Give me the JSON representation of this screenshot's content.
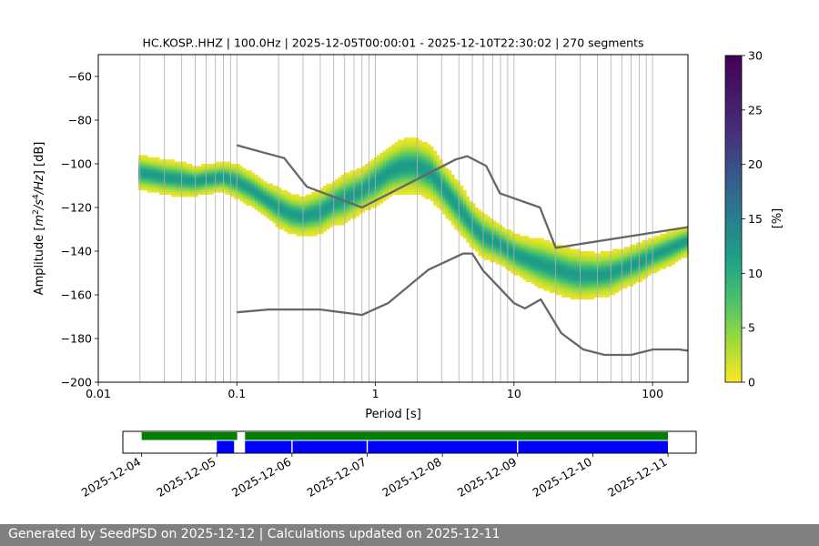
{
  "chart_data": [
    {
      "type": "heatmap",
      "title": "HC.KOSP..HHZ | 100.0Hz | 2025-12-05T00:00:01 - 2025-12-10T22:30:02 | 270 segments",
      "xlabel": "Period [s]",
      "ylabel_parts": [
        "Amplitude [",
        "m",
        "2",
        "/",
        "s",
        "4",
        "/",
        "Hz",
        "] [dB]"
      ],
      "x_scale": "log",
      "xlim": [
        0.01,
        180
      ],
      "ylim": [
        -200,
        -50
      ],
      "x_ticks": [
        0.01,
        0.1,
        1,
        10,
        100
      ],
      "x_tick_labels": [
        "0.01",
        "0.1",
        "1",
        "10",
        "100"
      ],
      "y_ticks": [
        -200,
        -180,
        -160,
        -140,
        -120,
        -100,
        -80,
        -60
      ],
      "y_tick_labels": [
        "−200",
        "−180",
        "−160",
        "−140",
        "−120",
        "−100",
        "−80",
        "−60"
      ],
      "grid": "vertical lines at each period decade subdivision",
      "colorbar": {
        "label": "[%]",
        "range": [
          0,
          30
        ],
        "ticks": [
          0,
          5,
          10,
          15,
          20,
          25,
          30
        ],
        "tick_labels": [
          "0",
          "5",
          "10",
          "15",
          "20",
          "25",
          "30"
        ],
        "colormap": "viridis_r"
      },
      "density_ridge": {
        "period": [
          0.02,
          0.025,
          0.03,
          0.04,
          0.05,
          0.06,
          0.08,
          0.1,
          0.13,
          0.16,
          0.2,
          0.25,
          0.3,
          0.4,
          0.5,
          0.6,
          0.8,
          1,
          1.3,
          1.6,
          2,
          2.5,
          3,
          4,
          5,
          6,
          8,
          10,
          13,
          16,
          20,
          25,
          30,
          40,
          50,
          60,
          80,
          100,
          130,
          180
        ],
        "db": [
          -104,
          -105,
          -106,
          -107,
          -108,
          -107,
          -106,
          -108,
          -112,
          -116,
          -120,
          -123,
          -124,
          -122,
          -118,
          -116,
          -112,
          -108,
          -103,
          -101,
          -101,
          -104,
          -110,
          -120,
          -128,
          -133,
          -137,
          -141,
          -144,
          -146,
          -148,
          -150,
          -151,
          -151,
          -150,
          -148,
          -145,
          -142,
          -139,
          -135
        ],
        "half_width_db": [
          7,
          7,
          7,
          7,
          6,
          6,
          6,
          7,
          7,
          7,
          8,
          8,
          8,
          9,
          9,
          10,
          9,
          10,
          10,
          11,
          11,
          11,
          10,
          10,
          9,
          9,
          8,
          8,
          9,
          10,
          10,
          10,
          10,
          9,
          9,
          8,
          8,
          7,
          7,
          6
        ],
        "peak_percent": 12
      },
      "noise_models": [
        {
          "period": [
            0.1,
            0.17,
            0.4,
            0.8,
            1.24,
            2.4,
            4.3,
            5,
            6,
            10,
            12,
            15.6,
            21.9,
            31.6,
            45,
            70,
            101,
            154,
            180
          ],
          "db": [
            -168,
            -166.7,
            -166.7,
            -169.2,
            -163.7,
            -148.6,
            -141.1,
            -141.1,
            -149,
            -163.8,
            -166.2,
            -162.1,
            -177.5,
            -185,
            -187.5,
            -187.5,
            -185,
            -185,
            -185.6
          ]
        },
        {
          "period": [
            0.1,
            0.22,
            0.32,
            0.8,
            3.8,
            4.6,
            6.3,
            7.9,
            15.4,
            20,
            180
          ],
          "db": [
            -91.5,
            -97.4,
            -110.5,
            -120,
            -98,
            -96.5,
            -101,
            -113.5,
            -120,
            -138.5,
            -129
          ]
        }
      ]
    },
    {
      "type": "timeline",
      "x_tick_labels": [
        "2025-12-04",
        "2025-12-05",
        "2025-12-06",
        "2025-12-07",
        "2025-12-08",
        "2025-12-09",
        "2025-12-10",
        "2025-12-11"
      ],
      "x_range_days": [
        "2025-12-03T18:00",
        "2025-12-11T09:00"
      ],
      "data_availability": {
        "color": "#008000",
        "spans": [
          [
            "2025-12-04T00:00",
            "2025-12-05T06:30"
          ],
          [
            "2025-12-05T09:00",
            "2025-12-11T00:00"
          ]
        ]
      },
      "psd_segments": {
        "color": "#0000ff",
        "spans": [
          [
            "2025-12-05T00:00",
            "2025-12-05T05:30"
          ],
          [
            "2025-12-05T09:00",
            "2025-12-11T00:00"
          ]
        ],
        "gaps": [
          "2025-12-06T00:00",
          "2025-12-07T00:00",
          "2025-12-09T00:00"
        ]
      }
    }
  ],
  "footer": {
    "text": "Generated by SeedPSD on 2025-12-12 | Calculations updated on 2025-12-11",
    "background": "#808080"
  }
}
